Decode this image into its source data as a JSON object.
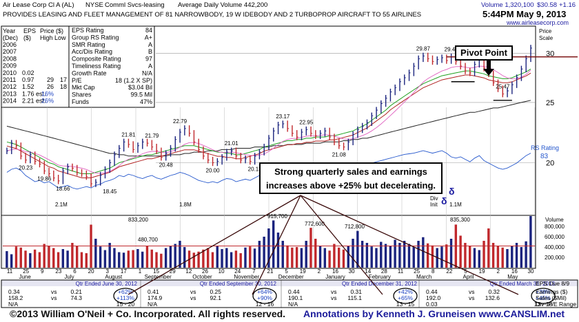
{
  "header": {
    "name": "Air Lease Corp Cl A (AL)",
    "exchange": "NYSE",
    "industry": "Comml Svcs-leasing",
    "avg_volume": "Average Daily Volume 442,200",
    "volume": "Volume 1,320,100",
    "price": "$30.58",
    "change": "+1.16",
    "description": "PROVIDES LEASING AND FLEET MANAGEMENT OF 81 NARROWBODY, 19 W IDEBODY AND 2 TURBOPROP AIRCRAFT TO 55 AIRLINES",
    "timestamp": "5:44PM May 9, 2013",
    "website": "www.airleasecorp.com"
  },
  "history_table": {
    "headers": [
      "Year",
      "EPS",
      "Price ($)"
    ],
    "subheaders": [
      "(Dec)",
      "($)",
      "High Low"
    ],
    "rows": [
      {
        "year": "2006",
        "eps": "",
        "high": "",
        "low": ""
      },
      {
        "year": "2007",
        "eps": "",
        "high": "",
        "low": ""
      },
      {
        "year": "2008",
        "eps": "",
        "high": "",
        "low": ""
      },
      {
        "year": "2009",
        "eps": "",
        "high": "",
        "low": ""
      },
      {
        "year": "2010",
        "eps": "0.02",
        "high": "",
        "low": ""
      },
      {
        "year": "2011",
        "eps": "0.97",
        "high": "29",
        "low": "17"
      },
      {
        "year": "2012",
        "eps": "1.52",
        "high": "26",
        "low": "18"
      },
      {
        "year": "2013",
        "eps": "1.76 est.",
        "high": "16%",
        "low": ""
      },
      {
        "year": "2014",
        "eps": "2.21 est.",
        "high": "26%",
        "low": ""
      }
    ]
  },
  "ratings": [
    {
      "label": "EPS Rating",
      "value": "84"
    },
    {
      "label": "Group RS Rating",
      "value": "A+"
    },
    {
      "label": "SMR Rating",
      "value": "A"
    },
    {
      "label": "Acc/Dis Rating",
      "value": "B"
    },
    {
      "label": "Composite Rating",
      "value": "97"
    },
    {
      "label": "Timeliness Rating",
      "value": "A"
    },
    {
      "label": "Growth Rate",
      "value": "N/A"
    },
    {
      "label": "P/E",
      "value": "18 (1.2 X SP)"
    },
    {
      "label": "Mkt Cap",
      "value": "$3.04 Bil"
    },
    {
      "label": "Shares",
      "value": "99.5 Mil"
    },
    {
      "label": "Funds",
      "value": "47%"
    }
  ],
  "price_scale_label": [
    "Price",
    "Scale"
  ],
  "annotation": {
    "text_line1": "Strong quarterly sales and earnings",
    "text_line2": "increases above +25% but decelerating.",
    "pivot_label": "Pivot Point"
  },
  "chart_data": {
    "type": "line",
    "ylim": [
      16.5,
      33
    ],
    "y_scale": "log",
    "price_ticks": [
      20,
      25,
      30
    ],
    "months": [
      "June",
      "July",
      "August",
      "September",
      "October",
      "November",
      "December",
      "January",
      "February",
      "March",
      "April",
      "May"
    ],
    "days": [
      "11",
      "25",
      "9",
      "23",
      "6",
      "20",
      "3",
      "17",
      "1",
      "15",
      "29",
      "12",
      "26",
      "10",
      "24",
      "7",
      "21",
      "5",
      "19",
      "2",
      "16",
      "30",
      "14",
      "28",
      "11",
      "25",
      "8",
      "22",
      "5",
      "19",
      "2",
      "16",
      "30"
    ],
    "price_series": [
      20.9,
      21.5,
      21.3,
      20.5,
      20.2,
      20.6,
      20.1,
      19.9,
      19.4,
      19.2,
      18.9,
      18.7,
      19.4,
      19.7,
      19.6,
      19.3,
      19.2,
      19.0,
      18.5,
      18.6,
      19.1,
      19.5,
      20.0,
      20.6,
      21.1,
      21.6,
      21.4,
      21.0,
      21.3,
      21.6,
      21.5,
      21.2,
      20.9,
      20.4,
      20.7,
      21.1,
      21.8,
      22.4,
      22.7,
      22.3,
      21.6,
      21.0,
      20.5,
      20.2,
      20.0,
      20.1,
      20.4,
      20.8,
      20.9,
      20.5,
      20.2,
      20.3,
      20.1,
      20.5,
      20.8,
      21.2,
      21.9,
      22.5,
      23.0,
      23.1,
      22.7,
      22.3,
      22.0,
      22.4,
      22.6,
      22.3,
      22.1,
      22.3,
      22.5,
      22.0,
      21.6,
      21.3,
      21.2,
      21.6,
      22.2,
      22.6,
      22.9,
      23.2,
      23.8,
      24.3,
      24.9,
      25.4,
      26.0,
      26.4,
      27.0,
      27.4,
      27.9,
      28.6,
      29.4,
      29.7,
      29.4,
      29.1,
      29.3,
      29.5,
      29.2,
      29.6,
      29.1,
      28.6,
      28.1,
      27.9,
      28.8,
      29.4,
      28.4,
      27.8,
      26.9,
      26.3,
      25.8,
      26.1,
      26.7,
      27.4,
      28.3,
      29.4,
      30.58
    ],
    "sma50_series": [
      21.6,
      21.5,
      21.4,
      21.2,
      21.0,
      20.8,
      20.6,
      20.4,
      20.2,
      20.0,
      19.9,
      19.7,
      19.6,
      19.5,
      19.4,
      19.3,
      19.2,
      19.2,
      19.2,
      19.3,
      19.4,
      19.5,
      19.6,
      19.8,
      20.0,
      20.1,
      20.2,
      20.3,
      20.4,
      20.5,
      20.6,
      20.6,
      20.7,
      20.8,
      20.9,
      21.0,
      21.1,
      21.2,
      21.3,
      21.3,
      21.3,
      21.2,
      21.1,
      21.0,
      20.9,
      20.8,
      20.8,
      20.7,
      20.7,
      20.6,
      20.6,
      20.7,
      20.8,
      20.9,
      21.0,
      21.2,
      21.3,
      21.4,
      21.5,
      21.6,
      21.7,
      21.7,
      21.8,
      21.8,
      21.9,
      21.9,
      22.0,
      22.0,
      22.0,
      22.1,
      22.1,
      22.2,
      22.3,
      22.4,
      22.5,
      22.7,
      22.9,
      23.1,
      23.4,
      23.7,
      24.0,
      24.3,
      24.7,
      25.0,
      25.3,
      25.6,
      25.9,
      26.2,
      26.5,
      26.8,
      27.0,
      27.2,
      27.4,
      27.6,
      27.7,
      27.8,
      27.9,
      28.0,
      28.1,
      28.1,
      28.0,
      27.9,
      27.8,
      27.6,
      27.5,
      27.4,
      27.3,
      27.3,
      27.4,
      27.6,
      27.8,
      28.0,
      28.3
    ],
    "sma200_series": [
      22.9,
      22.8,
      22.7,
      22.6,
      22.5,
      22.4,
      22.3,
      22.2,
      22.1,
      22.0,
      21.9,
      21.8,
      21.7,
      21.6,
      21.5,
      21.4,
      21.3,
      21.2,
      21.1,
      21.0,
      20.9,
      20.8,
      20.7,
      20.7,
      20.6,
      20.6,
      20.5,
      20.5,
      20.5,
      20.5,
      20.5,
      20.5,
      20.5,
      20.5,
      20.5,
      20.6,
      20.6,
      20.6,
      20.7,
      20.7,
      20.8,
      20.8,
      20.8,
      20.9,
      20.9,
      20.9,
      21.0,
      21.0,
      21.0,
      21.1,
      21.1,
      21.1,
      21.1,
      21.2,
      21.2,
      21.2,
      21.2,
      21.3,
      21.3,
      21.3,
      21.4,
      21.4,
      21.4,
      21.4,
      21.5,
      21.5,
      21.5,
      21.5,
      21.6,
      21.6,
      21.6,
      21.6,
      21.7,
      21.7,
      21.8,
      21.8,
      21.9,
      21.9,
      22.0,
      22.1,
      22.2,
      22.3,
      22.4,
      22.5,
      22.6,
      22.7,
      22.8,
      22.9,
      23.0,
      23.1,
      23.2,
      23.3,
      23.4,
      23.5,
      23.6,
      23.7,
      23.8,
      23.9,
      24.0,
      24.1,
      24.1,
      24.2,
      24.3,
      24.4,
      24.5,
      24.5,
      24.6,
      24.7,
      24.8,
      24.9,
      25.0,
      25.1,
      25.2
    ],
    "price_labels": [
      {
        "text": "20.23",
        "i": 4,
        "v": 20.2
      },
      {
        "text": "19.86",
        "i": 8,
        "v": 19.4
      },
      {
        "text": "18.66",
        "i": 12,
        "v": 18.7
      },
      {
        "text": "18.45",
        "i": 22,
        "v": 18.5
      },
      {
        "text": "21.81",
        "i": 26,
        "v": 21.6
      },
      {
        "text": "21.79",
        "i": 31,
        "v": 21.5
      },
      {
        "text": "20.48",
        "i": 34,
        "v": 20.4
      },
      {
        "text": "22.79",
        "i": 37,
        "v": 22.7
      },
      {
        "text": "20.00",
        "i": 44,
        "v": 20.0
      },
      {
        "text": "21.01",
        "i": 48,
        "v": 20.9
      },
      {
        "text": "20.13",
        "i": 53,
        "v": 20.1
      },
      {
        "text": "23.17",
        "i": 59,
        "v": 23.1
      },
      {
        "text": "22.95",
        "i": 64,
        "v": 22.6
      },
      {
        "text": "21.08",
        "i": 71,
        "v": 21.2
      },
      {
        "text": "29.87",
        "i": 89,
        "v": 29.7
      },
      {
        "text": "29.49",
        "i": 95,
        "v": 29.6
      },
      {
        "text": "25.47",
        "i": 106,
        "v": 25.8
      }
    ],
    "rs_label": "RS Rating",
    "rs_value": "83",
    "volume_ticks": [
      "800,000",
      "600,000",
      "400,000",
      "200,000"
    ],
    "volume_title": "Volume",
    "volume_labels": [
      {
        "text": "833,200"
      },
      {
        "text": "480,700"
      },
      {
        "text": "915,700"
      },
      {
        "text": "772,600"
      },
      {
        "text": "712,800"
      },
      {
        "text": "835,300"
      }
    ],
    "volume_series": [
      320,
      260,
      410,
      390,
      330,
      280,
      350,
      300,
      460,
      420,
      380,
      300,
      360,
      330,
      480,
      420,
      300,
      280,
      833,
      560,
      410,
      340,
      480,
      380,
      300,
      290,
      330,
      340,
      360,
      310,
      420,
      350,
      300,
      270,
      380,
      420,
      460,
      520,
      400,
      330,
      290,
      310,
      350,
      380,
      300,
      420,
      360,
      380,
      300,
      330,
      280,
      390,
      410,
      370,
      520,
      600,
      760,
      915,
      680,
      520,
      430,
      390,
      400,
      380,
      520,
      772,
      560,
      420,
      380,
      330,
      460,
      390,
      350,
      420,
      560,
      712,
      520,
      480,
      410,
      380,
      500,
      460,
      420,
      540,
      480,
      520,
      460,
      400,
      520,
      590,
      470,
      430,
      380,
      410,
      450,
      560,
      835,
      620,
      480,
      420,
      380,
      340,
      520,
      760,
      480,
      420,
      390,
      360,
      420,
      480,
      400,
      510,
      1320
    ],
    "volume_avg": 420,
    "rs_series": [
      0.55,
      0.6,
      0.62,
      0.58,
      0.5,
      0.45,
      0.4,
      0.42,
      0.38,
      0.4,
      0.35,
      0.3,
      0.32,
      0.34,
      0.3,
      0.28,
      0.3,
      0.32,
      0.3,
      0.34,
      0.36,
      0.4,
      0.42,
      0.45,
      0.5,
      0.48,
      0.52,
      0.5,
      0.47,
      0.45,
      0.48,
      0.5,
      0.46,
      0.44,
      0.47,
      0.5,
      0.52,
      0.55,
      0.53,
      0.5,
      0.46,
      0.42,
      0.4,
      0.38,
      0.4,
      0.38,
      0.42,
      0.45,
      0.44,
      0.4,
      0.42,
      0.44,
      0.42,
      0.46,
      0.5,
      0.52,
      0.55,
      0.58,
      0.6,
      0.62,
      0.6,
      0.58,
      0.56,
      0.58,
      0.6,
      0.58,
      0.56,
      0.6,
      0.62,
      0.6,
      0.58,
      0.56,
      0.55,
      0.58,
      0.62,
      0.65,
      0.66,
      0.68,
      0.7,
      0.72,
      0.74,
      0.76,
      0.78,
      0.8,
      0.82,
      0.84,
      0.85,
      0.86,
      0.88,
      0.9,
      0.88,
      0.86,
      0.88,
      0.9,
      0.86,
      0.8,
      0.78,
      0.8,
      0.76,
      0.72,
      0.78,
      0.82,
      0.74,
      0.7,
      0.66,
      0.62,
      0.6,
      0.62,
      0.66,
      0.7,
      0.76,
      0.82,
      0.86
    ],
    "volume_markers": [
      {
        "text": "2.1M"
      },
      {
        "text": "1.8M"
      },
      {
        "text": "1.1M"
      }
    ],
    "dividend_label": [
      "Div",
      "Init"
    ]
  },
  "quarters": [
    {
      "title": "Qtr Ended June 30, 2012",
      "eps": "0.34",
      "eps_prev": "0.21",
      "eps_pct": "+62%",
      "sales": "158.2",
      "sales_prev": "74.3",
      "sales_pct": "+113%",
      "pe": "N/A",
      "range": "15 - 20"
    },
    {
      "title": "Qtr Ended September 30, 2012",
      "eps": "0.41",
      "eps_prev": "0.25",
      "eps_pct": "+64%",
      "sales": "174.9",
      "sales_prev": "92.1",
      "sales_pct": "+90%",
      "pe": "N/A",
      "range": "12 - 16"
    },
    {
      "title": "Qtr Ended December 31, 2012",
      "eps": "0.44",
      "eps_prev": "0.31",
      "eps_pct": "+42%",
      "sales": "190.1",
      "sales_prev": "115.1",
      "sales_pct": "+65%",
      "pe": "N/A",
      "range": "13 - 15"
    },
    {
      "title": "Qtr Ended March 31, 2013",
      "eps": "0.44",
      "eps_prev": "0.32",
      "eps_pct": "+38%",
      "sales": "192.0",
      "sales_prev": "132.6",
      "sales_pct": "+45%",
      "pe": "0.03",
      "range": "13 - 18"
    }
  ],
  "quarter_vs": "vs",
  "eps_due": "EPS Due 8/9",
  "right_labels": [
    "Earnings ($)",
    "Sales ($Mil)",
    "Div--P/E Range"
  ],
  "footer": {
    "copyright": "©2013 William O'Neil + Co. Incorporated. All rights reserved.",
    "credit": "Annotations by Kenneth J. Gruneisen  www.CANSLIM.net"
  },
  "colors": {
    "price": "#1a237e",
    "sma50": "#1fa01f",
    "sma200": "#222222",
    "ema": "#e060c0",
    "red_ma": "#b02020",
    "volume_up": "#1a237e",
    "volume_down": "#c0282c",
    "rs": "#2255cc",
    "quarter_title": "#1a1aa0",
    "pct": "#1a40c0"
  }
}
